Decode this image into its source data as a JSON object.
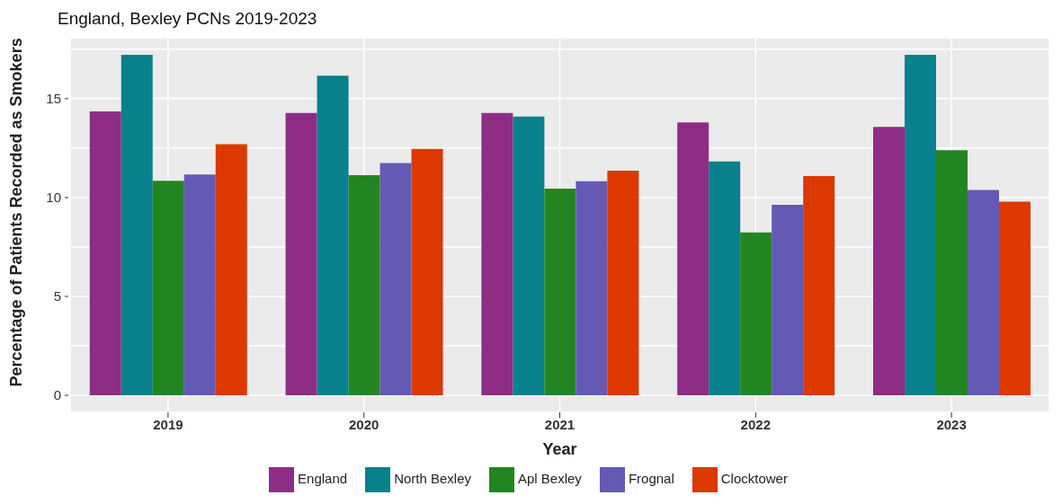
{
  "chart_data": {
    "type": "bar",
    "title": "England, Bexley PCNs 2019-2023",
    "xlabel": "Year",
    "ylabel": "Percentage of Patients Recorded as Smokers",
    "categories": [
      "2019",
      "2020",
      "2021",
      "2022",
      "2023"
    ],
    "series": [
      {
        "name": "England",
        "color": "#8e2c86",
        "values": [
          14.35,
          14.28,
          14.28,
          13.8,
          13.57
        ]
      },
      {
        "name": "North Bexley",
        "color": "#08818c",
        "values": [
          17.22,
          16.16,
          14.1,
          11.82,
          17.22
        ]
      },
      {
        "name": "Apl Bexley",
        "color": "#238522",
        "values": [
          10.85,
          11.13,
          10.45,
          8.24,
          12.39
        ]
      },
      {
        "name": "Frognal",
        "color": "#6459b4",
        "values": [
          11.17,
          11.74,
          10.82,
          9.63,
          10.38
        ]
      },
      {
        "name": "Clocktower",
        "color": "#dd3800",
        "values": [
          12.7,
          12.46,
          11.36,
          11.08,
          9.79
        ]
      }
    ],
    "ylim": [
      -0.86,
      18.08
    ],
    "yticks": [
      0,
      {
        "value": 2.5,
        "label": null
      },
      5,
      {
        "value": 7.5,
        "label": null
      },
      10,
      {
        "value": 12.5,
        "label": null
      },
      15,
      {
        "value": 17.5,
        "label": null
      }
    ],
    "grid": true,
    "legend": "bottom"
  }
}
